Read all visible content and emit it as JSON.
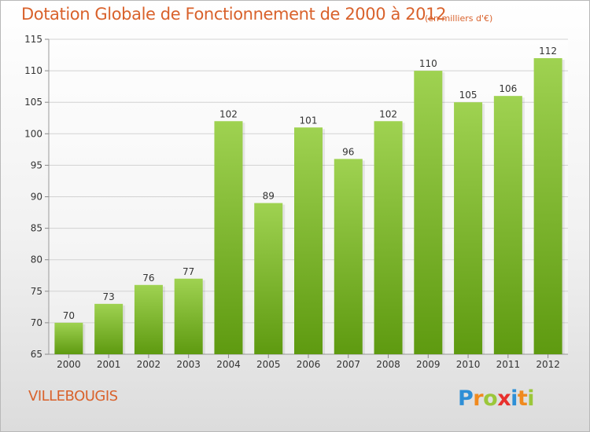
{
  "header": {
    "title": "Dotation Globale de Fonctionnement de 2000 à 2012",
    "subtitle": "(en milliers d'€)"
  },
  "footer": {
    "commune": "VILLEBOUGIS",
    "logo_text": "Proxiti"
  },
  "colors": {
    "bar_light": "#9fd251",
    "bar_dark": "#5e9a10",
    "title": "#d9622c",
    "grid": "#d2d2d2"
  },
  "chart_data": {
    "type": "bar",
    "categories": [
      "2000",
      "2001",
      "2002",
      "2003",
      "2004",
      "2005",
      "2006",
      "2007",
      "2008",
      "2009",
      "2010",
      "2011",
      "2012"
    ],
    "values": [
      70,
      73,
      76,
      77,
      102,
      89,
      101,
      96,
      102,
      110,
      105,
      106,
      112
    ],
    "title": "Dotation Globale de Fonctionnement de 2000 à 2012",
    "subtitle": "(en milliers d'€)",
    "ylim": [
      65,
      115
    ],
    "yticks": [
      65,
      70,
      75,
      80,
      85,
      90,
      95,
      100,
      105,
      110,
      115
    ],
    "grid": true,
    "data_labels": true
  }
}
